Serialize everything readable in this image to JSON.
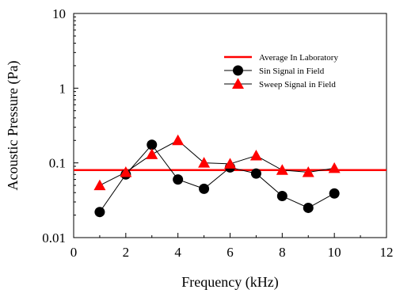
{
  "chart_data": {
    "type": "line",
    "xlabel": "Frequency (kHz)",
    "ylabel": "Acoustic Pressure (Pa)",
    "xlim": [
      0,
      12
    ],
    "ylim": [
      0.01,
      10
    ],
    "yscale": "log",
    "grid": false,
    "legend_position": "top-right",
    "x_ticks": [
      0,
      2,
      4,
      6,
      8,
      10,
      12
    ],
    "x_tick_labels": [
      "0",
      "2",
      "4",
      "6",
      "8",
      "10",
      "12"
    ],
    "y_ticks": [
      0.01,
      0.1,
      1,
      10
    ],
    "y_tick_labels": [
      "0.01",
      "0.1",
      "1",
      "10"
    ],
    "reference_line": {
      "name": "Average In Laboratory",
      "value": 0.08,
      "color": "#ff0000"
    },
    "series": [
      {
        "name": "Sin Signal in Field",
        "marker": "circle",
        "color": "#000000",
        "x": [
          1,
          2,
          3,
          4,
          5,
          6,
          7,
          8,
          9,
          10
        ],
        "values": [
          0.022,
          0.07,
          0.175,
          0.06,
          0.045,
          0.087,
          0.072,
          0.036,
          0.025,
          0.039
        ]
      },
      {
        "name": "Sweep Signal in Field",
        "marker": "triangle",
        "color": "#ff0000",
        "x": [
          1,
          2,
          3,
          4,
          5,
          6,
          7,
          8,
          9,
          10
        ],
        "values": [
          0.05,
          0.075,
          0.13,
          0.2,
          0.1,
          0.097,
          0.125,
          0.08,
          0.075,
          0.085
        ]
      }
    ]
  }
}
